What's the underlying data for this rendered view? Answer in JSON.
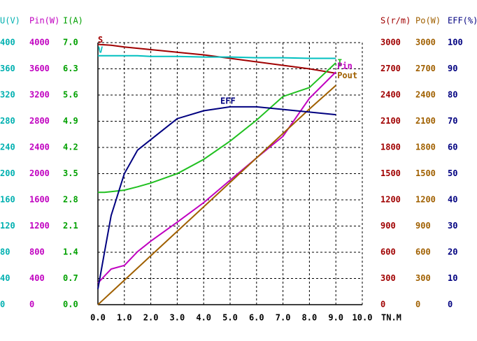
{
  "chart_data": {
    "type": "line",
    "x_label": "TN.M",
    "x": [
      0,
      0.25,
      0.5,
      1,
      1.5,
      2,
      3,
      4,
      5,
      6,
      7,
      8,
      9
    ],
    "xlim": [
      0,
      10
    ],
    "xticks": [
      {
        "value": 0,
        "label": "0.0"
      },
      {
        "value": 1,
        "label": "1.0"
      },
      {
        "value": 2,
        "label": "2.0"
      },
      {
        "value": 3,
        "label": "3.0"
      },
      {
        "value": 4,
        "label": "4.0"
      },
      {
        "value": 5,
        "label": "5.0"
      },
      {
        "value": 6,
        "label": "6.0"
      },
      {
        "value": 7,
        "label": "7.0"
      },
      {
        "value": 8,
        "label": "8.0"
      },
      {
        "value": 9,
        "label": "9.0"
      },
      {
        "value": 10,
        "label": "10.0"
      }
    ],
    "grid": true,
    "y_axes": [
      {
        "title": "U(V)",
        "side": "left",
        "color": "#00b0b0",
        "lim": [
          0,
          400
        ],
        "ticks": [
          0,
          40,
          80,
          120,
          160,
          200,
          240,
          280,
          320,
          360,
          400
        ]
      },
      {
        "title": "Pin(W)",
        "side": "left",
        "color": "#c000c0",
        "lim": [
          0,
          4000
        ],
        "ticks": [
          0,
          400,
          800,
          1200,
          1600,
          2000,
          2400,
          2800,
          3200,
          3600,
          4000
        ]
      },
      {
        "title": "I(A)",
        "side": "left",
        "color": "#00a000",
        "lim": [
          0,
          7
        ],
        "ticks": [
          {
            "value": 0,
            "label": "0.0"
          },
          0.7,
          1.4,
          2.1,
          2.8,
          3.5,
          4.2,
          4.9,
          5.6,
          6.3,
          {
            "value": 7,
            "label": "7.0"
          }
        ]
      },
      {
        "title": "S(r/m)",
        "side": "right",
        "color": "#a00000",
        "lim": [
          0,
          3000
        ],
        "ticks": [
          0,
          300,
          600,
          900,
          1200,
          1500,
          1800,
          2100,
          2400,
          2700,
          3000
        ]
      },
      {
        "title": "Po(W)",
        "side": "right",
        "color": "#a06000",
        "lim": [
          0,
          3000
        ],
        "ticks": [
          0,
          300,
          600,
          900,
          1200,
          1500,
          1800,
          2100,
          2400,
          2700,
          3000
        ]
      },
      {
        "title": "EFF(%)",
        "side": "right",
        "color": "#000080",
        "lim": [
          0,
          100
        ],
        "ticks": [
          0,
          10,
          20,
          30,
          40,
          50,
          60,
          70,
          80,
          90,
          100
        ]
      }
    ],
    "series": [
      {
        "name": "S",
        "axis": "S(r/m)",
        "color": "#a00000",
        "values": [
          2980,
          2975,
          2970,
          2950,
          2935,
          2920,
          2890,
          2860,
          2820,
          2780,
          2740,
          2700,
          2650
        ]
      },
      {
        "name": "V",
        "axis": "U(V)",
        "color": "#00c0c0",
        "values": [
          380,
          380,
          380,
          380,
          380,
          379,
          379,
          378,
          378,
          377,
          377,
          376,
          376
        ]
      },
      {
        "name": "I",
        "axis": "I(A)",
        "color": "#20c020",
        "values": [
          3.0,
          3.0,
          3.02,
          3.06,
          3.15,
          3.25,
          3.5,
          3.88,
          4.37,
          4.93,
          5.56,
          5.8,
          6.46
        ]
      },
      {
        "name": "Pin",
        "axis": "Pin(W)",
        "color": "#c000c0",
        "values": [
          330,
          437,
          544,
          600,
          810,
          970,
          1260,
          1557,
          1900,
          2240,
          2570,
          3150,
          3552
        ]
      },
      {
        "name": "Pout",
        "axis": "Po(W)",
        "color": "#a06000",
        "values": [
          0,
          70,
          140,
          280,
          420,
          560,
          840,
          1120,
          1400,
          1680,
          1960,
          2240,
          2510
        ]
      },
      {
        "name": "EFF",
        "axis": "EFF(%)",
        "color": "#000080",
        "values": [
          6,
          20,
          34,
          50,
          59,
          63,
          71,
          74,
          75.5,
          75.5,
          74.5,
          73.5,
          72.5
        ]
      }
    ]
  }
}
